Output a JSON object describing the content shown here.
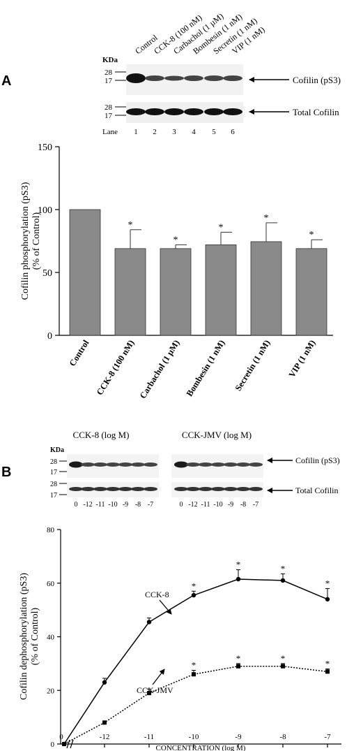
{
  "panel_a": {
    "letter": "A",
    "blot": {
      "unit": "KDa",
      "lane_names": [
        "Control",
        "CCK-8 (100 nM)",
        "Carbachol (1 µM)",
        "Bombesin (1 nM)",
        "Secretin (1 nM)",
        "VIP (1 nM)"
      ],
      "marker_top": [
        "28",
        "17"
      ],
      "marker_bottom": [
        "28",
        "17"
      ],
      "label_top": "Cofilin (pS3)",
      "label_bottom": "Total Cofilin",
      "lane_word": "Lane",
      "lane_numbers": [
        "1",
        "2",
        "3",
        "4",
        "5",
        "6"
      ]
    }
  },
  "panel_b": {
    "letter": "B",
    "blot": {
      "unit": "KDa",
      "group1_title": "CCK-8 (log M)",
      "group2_title": "CCK-JMV (log M)",
      "marker_top": [
        "28",
        "17"
      ],
      "marker_bottom": [
        "28",
        "17"
      ],
      "label_top": "Cofilin (pS3)",
      "label_bottom": "Total Cofilin",
      "conc_labels": [
        "0",
        "-12",
        "-11",
        "-10",
        "-9",
        "-8",
        "-7"
      ]
    }
  },
  "chart_data": [
    {
      "type": "bar",
      "ylabel_line1": "Cofilin phosphorylation (pS3)",
      "ylabel_line2": "(% of Control)",
      "ylim": [
        0,
        150
      ],
      "yticks": [
        "0",
        "50",
        "100",
        "150"
      ],
      "categories": [
        "Control",
        "CCK-8 (100 nM)",
        "Carbachol (1 µM)",
        "Bombesin (1 nM)",
        "Secretin (1 nM)",
        "VIP (1 nM)"
      ],
      "values": [
        100,
        69,
        69,
        72,
        74.5,
        69
      ],
      "errors": [
        0,
        15,
        3,
        10,
        15,
        7
      ],
      "significance": [
        "",
        "*",
        "*",
        "*",
        "*",
        "*"
      ],
      "bar_color": "#8a8a8a",
      "grid": false
    },
    {
      "type": "line",
      "ylabel_line1": "Cofilin dephosphorylation (pS3)",
      "ylabel_line2": "(% of Control)",
      "xlabel": "CONCENTRATION (log M)",
      "ylim": [
        0,
        80
      ],
      "yticks": [
        "0",
        "20",
        "40",
        "60",
        "80"
      ],
      "xticks": [
        "0",
        "-12",
        "-11",
        "-10",
        "-9",
        "-8",
        "-7"
      ],
      "series": [
        {
          "name": "CCK-8",
          "x": [
            "0",
            "-12",
            "-11",
            "-10",
            "-9",
            "-8",
            "-7"
          ],
          "values": [
            0,
            23,
            45.5,
            55.5,
            61.5,
            61,
            54
          ],
          "errors": [
            0,
            1.5,
            1.5,
            1.5,
            3.5,
            2.5,
            4
          ],
          "significance": [
            "",
            "",
            "",
            "*",
            "*",
            "*",
            "*"
          ],
          "marker": "circle",
          "line": "solid"
        },
        {
          "name": "CCK-JMV",
          "x": [
            "0",
            "-12",
            "-11",
            "-10",
            "-9",
            "-8",
            "-7"
          ],
          "values": [
            0,
            8,
            19,
            26,
            29,
            29,
            27
          ],
          "errors": [
            0,
            0.5,
            1.5,
            1.5,
            1,
            1,
            1
          ],
          "significance": [
            "",
            "",
            "",
            "*",
            "*",
            "*",
            "*"
          ],
          "marker": "square",
          "line": "dotted"
        }
      ],
      "grid": false
    }
  ]
}
